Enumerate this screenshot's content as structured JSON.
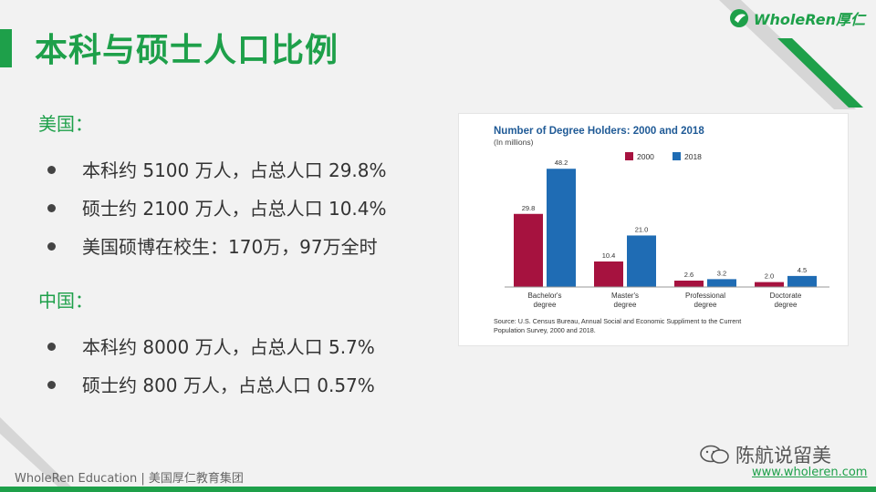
{
  "title": "本科与硕士人口比例",
  "logo": {
    "text": "WholeRen厚仁"
  },
  "sections": [
    {
      "heading": "美国：",
      "bullets": [
        "本科约 5100 万人，占总人口 29.8%",
        "硕士约 2100 万人，占总人口 10.4%",
        "美国硕博在校生：170万，97万全时"
      ]
    },
    {
      "heading": "中国：",
      "bullets": [
        "本科约 8000 万人，占总人口 5.7%",
        "硕士约 800 万人，占总人口 0.57%"
      ]
    }
  ],
  "chart_data": {
    "type": "bar",
    "title": "Number of Degree Holders: 2000 and 2018",
    "subtitle": "(In millions)",
    "categories": [
      "Bachelor's degree",
      "Master's degree",
      "Professional degree",
      "Doctorate degree"
    ],
    "category_lines": [
      [
        "Bachelor's",
        "degree"
      ],
      [
        "Master's",
        "degree"
      ],
      [
        "Professional",
        "degree"
      ],
      [
        "Doctorate",
        "degree"
      ]
    ],
    "series": [
      {
        "name": "2000",
        "color": "#a6123f",
        "values": [
          29.8,
          10.4,
          2.6,
          2.0
        ]
      },
      {
        "name": "2018",
        "color": "#1f6cb4",
        "values": [
          48.2,
          21.0,
          3.2,
          4.5
        ]
      }
    ],
    "ylim": [
      0,
      52
    ],
    "legend": "top-center",
    "grid": false,
    "source": "Source: U.S. Census Bureau, Annual Social and Economic Suppliment to the Current Population Survey, 2000 and 2018."
  },
  "footer": {
    "left": "WholeRen Education | 美国厚仁教育集团",
    "wechat": "陈航说留美",
    "url": "www.wholeren.com"
  },
  "colors": {
    "accent": "#1ea04a",
    "bar2000": "#a6123f",
    "bar2018": "#1f6cb4"
  }
}
